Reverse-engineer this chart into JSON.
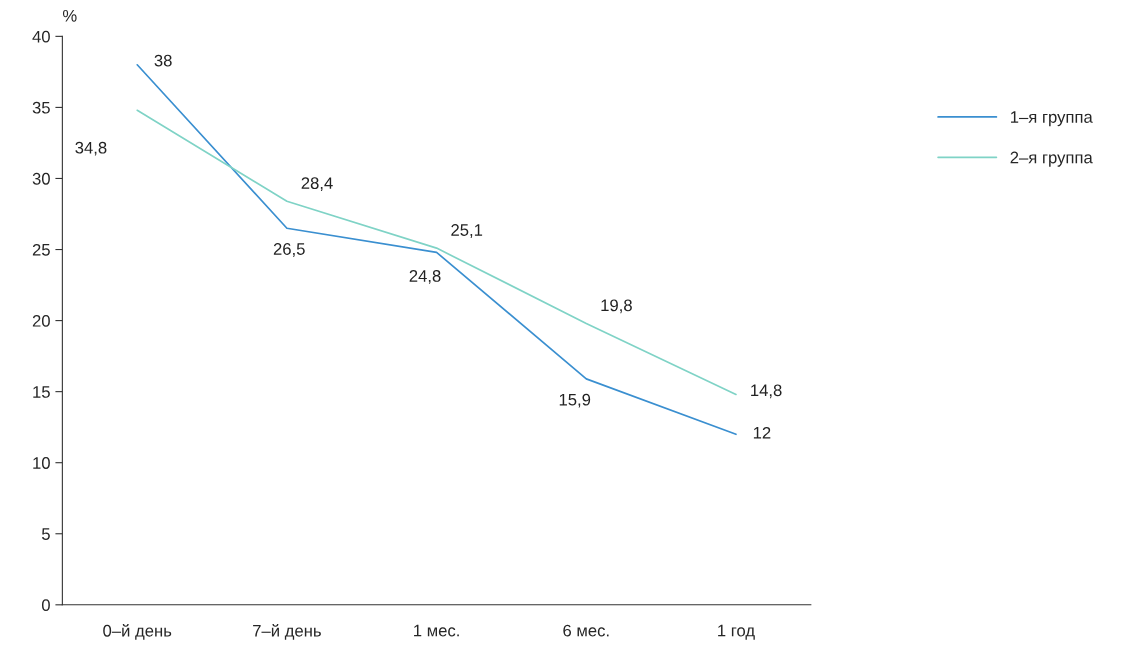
{
  "chart_data": {
    "type": "line",
    "ylabel": "%",
    "categories": [
      "0–й день",
      "7–й день",
      "1 мес.",
      "6 мес.",
      "1 год"
    ],
    "series": [
      {
        "name": "1–я группа",
        "color": "#3a8fd0",
        "values": [
          38,
          26.5,
          24.8,
          15.9,
          12
        ],
        "value_labels": [
          "38",
          "26,5",
          "24,8",
          "15,9",
          "12"
        ]
      },
      {
        "name": "2–я группа",
        "color": "#7fd3c6",
        "values": [
          34.8,
          28.4,
          25.1,
          19.8,
          14.8
        ],
        "value_labels": [
          "34,8",
          "28,4",
          "25,1",
          "19,8",
          "14,8"
        ]
      }
    ],
    "ylim": [
      0,
      40
    ],
    "yticks": [
      0,
      5,
      10,
      15,
      20,
      25,
      30,
      35,
      40
    ],
    "grid": false,
    "legend": "right",
    "marker": "none",
    "line_style": "solid"
  }
}
